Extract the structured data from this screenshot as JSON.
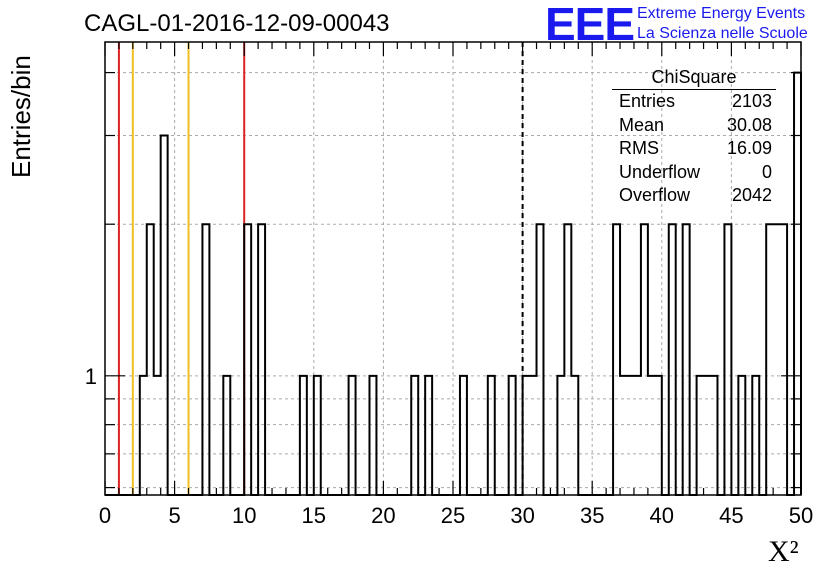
{
  "title": "CAGL-01-2016-12-09-00043",
  "logo": {
    "mark": "EEE",
    "line1": "Extreme Energy Events",
    "line2": "La Scienza nelle Scuole",
    "color": "#1a1aee"
  },
  "stats_box": {
    "title": "ChiSquare",
    "rows": [
      {
        "label": "Entries",
        "value": "2103"
      },
      {
        "label": "Mean",
        "value": "30.08"
      },
      {
        "label": "RMS",
        "value": "16.09"
      },
      {
        "label": "Underflow",
        "value": "0"
      },
      {
        "label": "Overflow",
        "value": "2042"
      }
    ]
  },
  "chart_data": {
    "type": "histogram",
    "xlabel": "X²",
    "ylabel": "Entries/bin",
    "xlim": [
      0,
      50
    ],
    "bin_width": 0.5,
    "yscale": "log",
    "ylim": [
      0.58,
      4.6
    ],
    "x_ticks": [
      0,
      5,
      10,
      15,
      20,
      25,
      30,
      35,
      40,
      45,
      50
    ],
    "y_tick_labels": [
      {
        "value": 1,
        "label": "1"
      }
    ],
    "grid": true,
    "bins": [
      {
        "x": 2.5,
        "y": 1
      },
      {
        "x": 3.0,
        "y": 2
      },
      {
        "x": 3.5,
        "y": 1
      },
      {
        "x": 4.0,
        "y": 3
      },
      {
        "x": 7.0,
        "y": 2
      },
      {
        "x": 8.5,
        "y": 1
      },
      {
        "x": 10.0,
        "y": 2
      },
      {
        "x": 11.0,
        "y": 2
      },
      {
        "x": 14.0,
        "y": 1
      },
      {
        "x": 15.0,
        "y": 1
      },
      {
        "x": 17.5,
        "y": 1
      },
      {
        "x": 19.0,
        "y": 1
      },
      {
        "x": 22.0,
        "y": 1
      },
      {
        "x": 23.0,
        "y": 1
      },
      {
        "x": 25.5,
        "y": 1
      },
      {
        "x": 27.5,
        "y": 1
      },
      {
        "x": 29.0,
        "y": 1
      },
      {
        "x": 30.0,
        "y": 1
      },
      {
        "x": 30.5,
        "y": 1
      },
      {
        "x": 31.0,
        "y": 2
      },
      {
        "x": 32.5,
        "y": 1
      },
      {
        "x": 33.0,
        "y": 2
      },
      {
        "x": 33.5,
        "y": 1
      },
      {
        "x": 36.5,
        "y": 2
      },
      {
        "x": 37.0,
        "y": 1
      },
      {
        "x": 37.5,
        "y": 1
      },
      {
        "x": 38.0,
        "y": 1
      },
      {
        "x": 38.5,
        "y": 2
      },
      {
        "x": 39.0,
        "y": 1
      },
      {
        "x": 39.5,
        "y": 1
      },
      {
        "x": 40.5,
        "y": 2
      },
      {
        "x": 41.5,
        "y": 2
      },
      {
        "x": 42.5,
        "y": 1
      },
      {
        "x": 43.0,
        "y": 1
      },
      {
        "x": 43.5,
        "y": 1
      },
      {
        "x": 44.5,
        "y": 2
      },
      {
        "x": 45.5,
        "y": 1
      },
      {
        "x": 46.5,
        "y": 1
      },
      {
        "x": 47.5,
        "y": 2
      },
      {
        "x": 48.0,
        "y": 2
      },
      {
        "x": 48.5,
        "y": 2
      },
      {
        "x": 49.5,
        "y": 4
      }
    ],
    "reference_lines": [
      {
        "x": 1,
        "color": "#dd2222",
        "style": "solid"
      },
      {
        "x": 2,
        "color": "#f0c020",
        "style": "solid"
      },
      {
        "x": 6,
        "color": "#f0c020",
        "style": "solid"
      },
      {
        "x": 10,
        "color": "#dd2222",
        "style": "solid"
      },
      {
        "x": 30,
        "color": "#000000",
        "style": "dashed"
      }
    ]
  }
}
